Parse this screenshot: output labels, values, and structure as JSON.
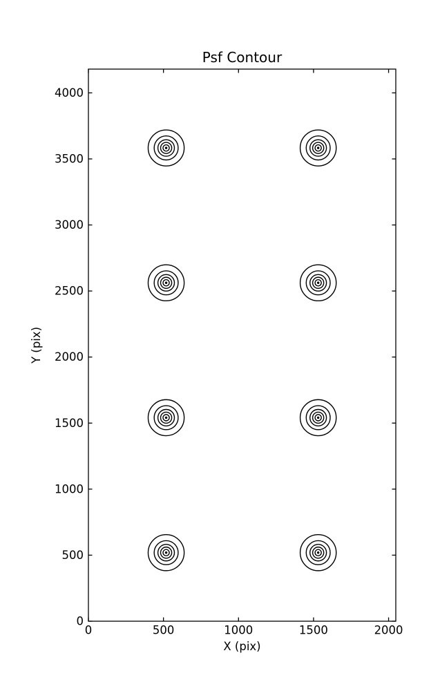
{
  "figure": {
    "background": "#ffffff",
    "line_color": "#000000"
  },
  "chart_data": {
    "type": "contour",
    "title": "Psf Contour",
    "xlabel": "X (pix)",
    "ylabel": "Y (pix)",
    "xlim": [
      0,
      2048
    ],
    "ylim": [
      0,
      4180
    ],
    "xticks": [
      0,
      500,
      1000,
      1500,
      2000
    ],
    "yticks": [
      0,
      500,
      1000,
      1500,
      2000,
      2500,
      3000,
      3500,
      4000
    ],
    "grid": false,
    "legend": false,
    "tick_direction": "in",
    "psf_centers": [
      [
        518,
        519
      ],
      [
        1531,
        519
      ],
      [
        518,
        1541
      ],
      [
        1531,
        1541
      ],
      [
        518,
        2562
      ],
      [
        1531,
        2562
      ],
      [
        518,
        3583
      ],
      [
        1531,
        3583
      ]
    ],
    "ring_radii": [
      120,
      80,
      55,
      37,
      21
    ],
    "core_radius": 8
  }
}
